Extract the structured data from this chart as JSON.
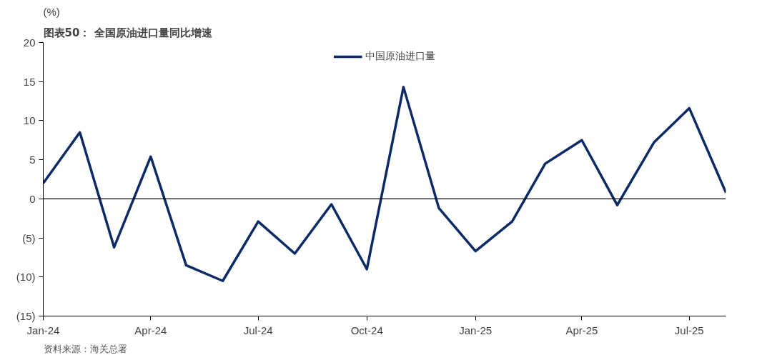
{
  "chart_data": {
    "type": "line",
    "title": "图表50： 全国原油进口量同比增速",
    "ylabel": "(%)",
    "annotations": [
      "资料来源：海关总署"
    ],
    "x": [
      "2024-01",
      "2024-02",
      "2024-03",
      "2024-04",
      "2024-05",
      "2024-06",
      "2024-07",
      "2024-08",
      "2024-09",
      "2024-10",
      "2024-11",
      "2024-12",
      "2025-01",
      "2025-02",
      "2025-03",
      "2025-04",
      "2025-05",
      "2025-06",
      "2025-07",
      "2025-08"
    ],
    "series": [
      {
        "name": "中国原油进口量",
        "color": "#0b2a66",
        "values": [
          2.0,
          8.5,
          -6.2,
          5.4,
          -8.5,
          -10.5,
          -2.9,
          -7.0,
          -0.7,
          -9.0,
          14.3,
          -1.2,
          -6.7,
          -2.9,
          4.5,
          7.5,
          -0.8,
          7.2,
          11.6,
          0.8
        ]
      }
    ],
    "xlim": [
      "2024-01",
      "2025-08"
    ],
    "xticks": [
      {
        "value": "2024-01",
        "label": "Jan-24"
      },
      {
        "value": "2024-04",
        "label": "Apr-24"
      },
      {
        "value": "2024-07",
        "label": "Jul-24"
      },
      {
        "value": "2024-10",
        "label": "Oct-24"
      },
      {
        "value": "2025-01",
        "label": "Jan-25"
      },
      {
        "value": "2025-04",
        "label": "Apr-25"
      },
      {
        "value": "2025-07",
        "label": "Jul-25"
      }
    ],
    "ylim": [
      -15,
      20
    ],
    "yticks": [
      {
        "value": -15,
        "label": "(15)"
      },
      {
        "value": -10,
        "label": "(10)"
      },
      {
        "value": -5,
        "label": "(5)"
      },
      0,
      5,
      10,
      15,
      20
    ],
    "ref_lines": [
      {
        "axis": "y",
        "value": 0,
        "color": "#000000"
      }
    ],
    "grid": false,
    "legend": "top",
    "marker": "none",
    "line_style": "solid"
  }
}
